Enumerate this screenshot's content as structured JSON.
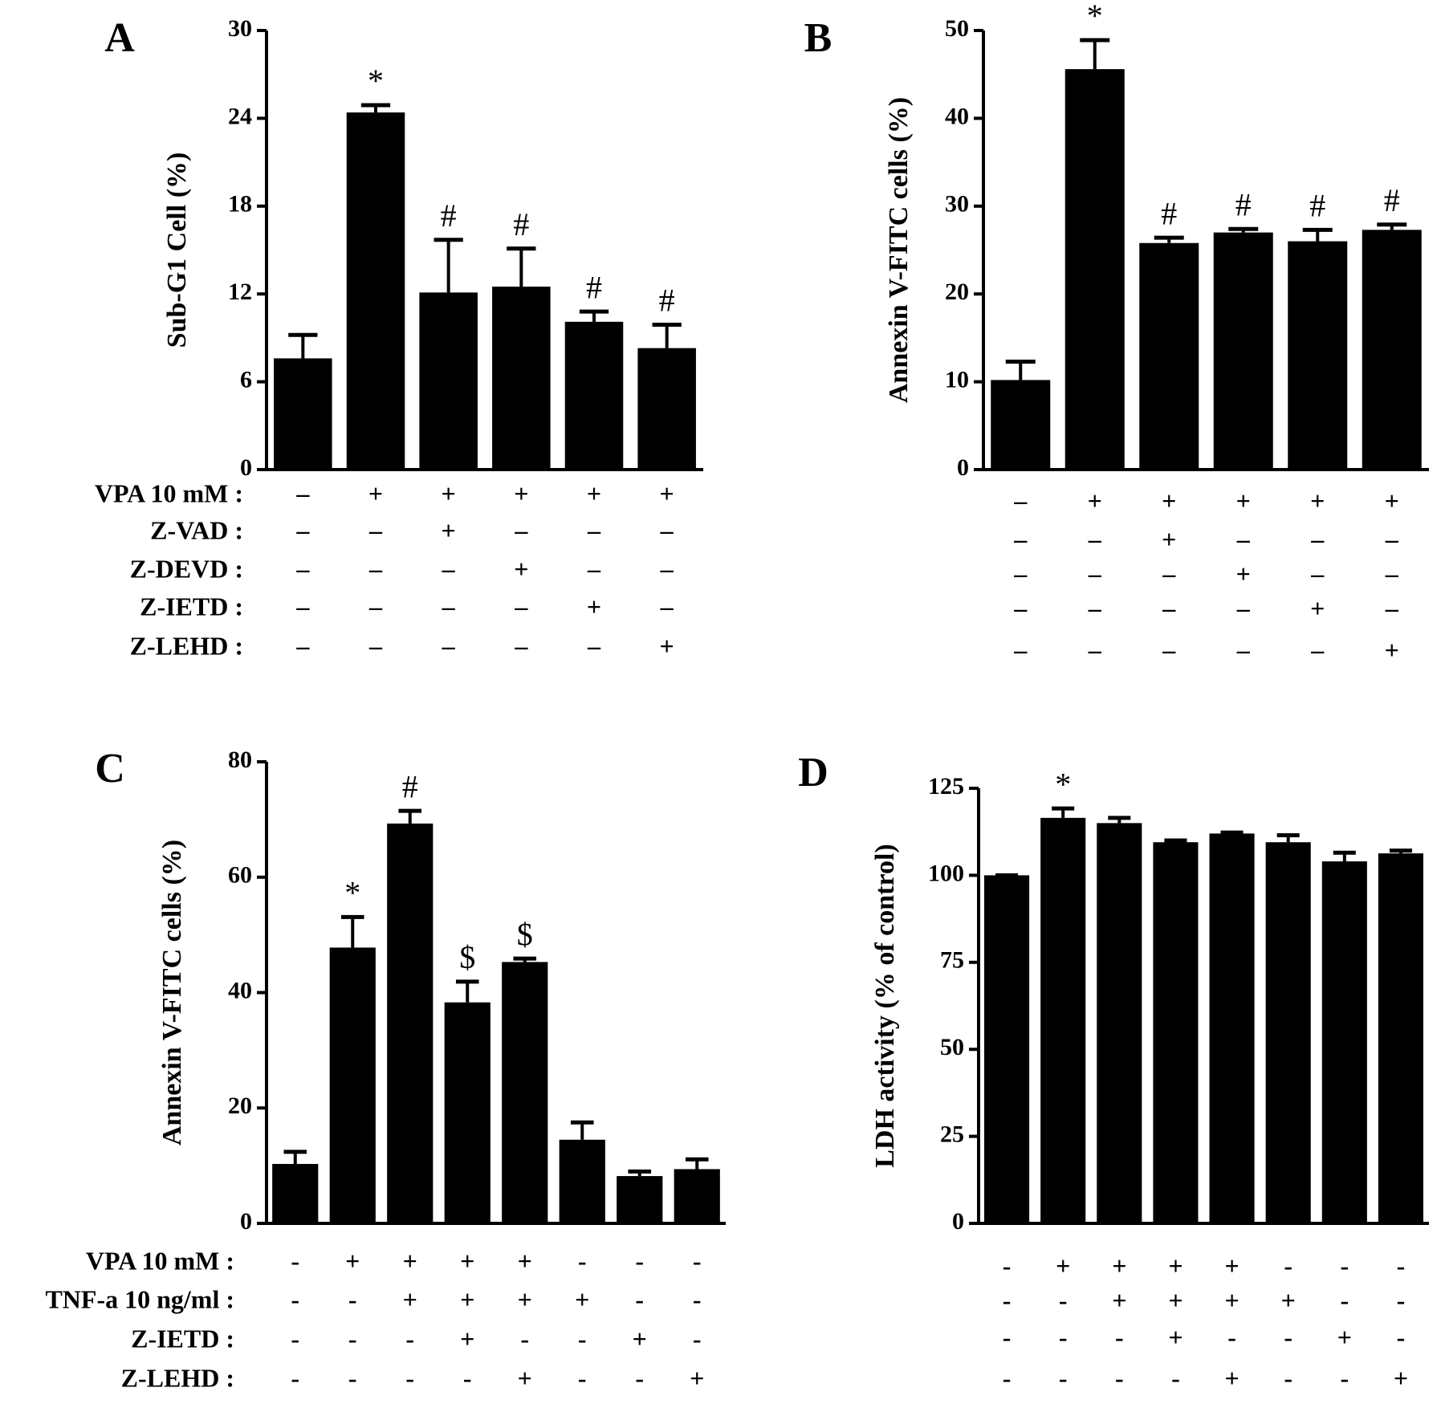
{
  "chart_data": [
    {
      "type": "bar",
      "panel_label": "A",
      "ylabel": "Sub-G1 Cell (%)",
      "color": "#000000",
      "values": [
        7.6,
        24.4,
        12.1,
        12.5,
        10.1,
        8.3
      ],
      "errors": [
        1.6,
        0.5,
        3.6,
        2.6,
        0.7,
        1.6
      ],
      "annotations": [
        null,
        "*",
        "#",
        "#",
        "#",
        "#"
      ],
      "ylim": [
        0,
        30
      ],
      "yticks": [
        0,
        6,
        12,
        18,
        24,
        30
      ],
      "treatments": [
        {
          "label": "VPA 10 mM :",
          "signs": [
            "–",
            "+",
            "+",
            "+",
            "+",
            "+"
          ]
        },
        {
          "label": "Z-VAD :",
          "signs": [
            "–",
            "–",
            "+",
            "–",
            "–",
            "–"
          ]
        },
        {
          "label": "Z-DEVD :",
          "signs": [
            "–",
            "–",
            "–",
            "+",
            "–",
            "–"
          ]
        },
        {
          "label": "Z-IETD :",
          "signs": [
            "–",
            "–",
            "–",
            "–",
            "+",
            "–"
          ]
        },
        {
          "label": "Z-LEHD :",
          "signs": [
            "–",
            "–",
            "–",
            "–",
            "–",
            "+"
          ]
        }
      ]
    },
    {
      "type": "bar",
      "panel_label": "B",
      "ylabel": "Annexin V-FITC cells (%)",
      "color": "#000000",
      "values": [
        10.2,
        45.6,
        25.8,
        27.0,
        26.0,
        27.3
      ],
      "errors": [
        2.1,
        3.3,
        0.6,
        0.4,
        1.3,
        0.6
      ],
      "annotations": [
        null,
        "*",
        "#",
        "#",
        "#",
        "#"
      ],
      "ylim": [
        0,
        50
      ],
      "yticks": [
        0,
        10,
        20,
        30,
        40,
        50
      ],
      "treatments": [
        {
          "signs": [
            "–",
            "+",
            "+",
            "+",
            "+",
            "+"
          ]
        },
        {
          "signs": [
            "–",
            "–",
            "+",
            "–",
            "–",
            "–"
          ]
        },
        {
          "signs": [
            "–",
            "–",
            "–",
            "+",
            "–",
            "–"
          ]
        },
        {
          "signs": [
            "–",
            "–",
            "–",
            "–",
            "+",
            "–"
          ]
        },
        {
          "signs": [
            "–",
            "–",
            "–",
            "–",
            "–",
            "+"
          ]
        }
      ]
    },
    {
      "type": "bar",
      "panel_label": "C",
      "ylabel": "Annexin V-FITC cells (%)",
      "color": "#000000",
      "values": [
        10.3,
        47.8,
        69.3,
        38.3,
        45.3,
        14.5,
        8.2,
        9.4
      ],
      "errors": [
        2.1,
        5.3,
        2.2,
        3.6,
        0.6,
        3.0,
        0.8,
        1.7
      ],
      "annotations": [
        null,
        "*",
        "#",
        "$",
        "$",
        null,
        null,
        null
      ],
      "ylim": [
        0,
        80
      ],
      "yticks": [
        0,
        20,
        40,
        60,
        80
      ],
      "treatments": [
        {
          "label": "VPA 10 mM :",
          "signs": [
            "-",
            "+",
            "+",
            "+",
            "+",
            "-",
            "-",
            "-"
          ]
        },
        {
          "label": "TNF-a 10 ng/ml :",
          "signs": [
            "-",
            "-",
            "+",
            "+",
            "+",
            "+",
            "-",
            "-"
          ]
        },
        {
          "label": "Z-IETD :",
          "signs": [
            "-",
            "-",
            "-",
            "+",
            "-",
            "-",
            "+",
            "-"
          ]
        },
        {
          "label": "Z-LEHD :",
          "signs": [
            "-",
            "-",
            "-",
            "-",
            "+",
            "-",
            "-",
            "+"
          ]
        }
      ]
    },
    {
      "type": "bar",
      "panel_label": "D",
      "ylabel": "LDH activity (% of control)",
      "color": "#000000",
      "values": [
        100,
        116.5,
        115.0,
        109.5,
        112.0,
        109.5,
        104.0,
        106.3
      ],
      "errors": [
        0,
        2.7,
        1.5,
        0.5,
        0.3,
        2.0,
        2.5,
        0.8
      ],
      "annotations": [
        null,
        "*",
        null,
        null,
        null,
        null,
        null,
        null
      ],
      "ylim": [
        0,
        125
      ],
      "yticks": [
        0,
        25,
        50,
        75,
        100,
        125
      ],
      "treatments": [
        {
          "signs": [
            "-",
            "+",
            "+",
            "+",
            "+",
            "-",
            "-",
            "-"
          ]
        },
        {
          "signs": [
            "-",
            "-",
            "+",
            "+",
            "+",
            "+",
            "-",
            "-"
          ]
        },
        {
          "signs": [
            "-",
            "-",
            "-",
            "+",
            "-",
            "-",
            "+",
            "-"
          ]
        },
        {
          "signs": [
            "-",
            "-",
            "-",
            "-",
            "+",
            "-",
            "-",
            "+"
          ]
        }
      ]
    }
  ]
}
